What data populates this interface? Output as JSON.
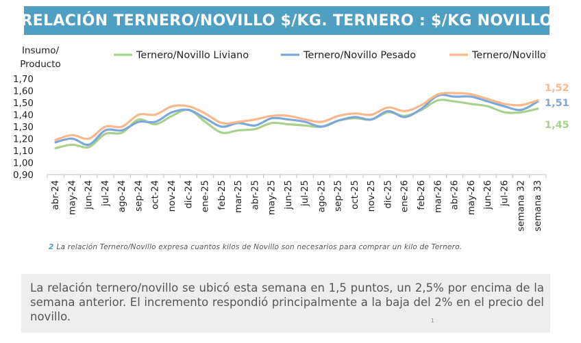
{
  "title": "RELACIÓN TERNERO/NOVILLO $/KG. TERNERO : $/KG NOVILLO",
  "footnote": {
    "number": "2",
    "text": "La relación Ternero/Novillo expresa cuantos kilos de Novillo son necesarios para comprar un kilo de Ternero."
  },
  "summary": "La relación ternero/novillo se ubicó esta semana en 1,5 puntos, un 2,5% por encima de la semana anterior. El incremento respondió principalmente a la baja del 2% en el precio del novillo.",
  "page_number": "1",
  "colors": {
    "title_bg": "#4f9fc2",
    "liviano": "#a9d18e",
    "pesado": "#7da7d9",
    "ternero_novillo": "#f8b88b"
  },
  "chart_data": {
    "type": "line",
    "ylabel_lines": [
      "Insumo/",
      "Producto"
    ],
    "ylim": [
      0.9,
      1.7
    ],
    "yticks": [
      "0,90",
      "1,00",
      "1,10",
      "1,20",
      "1,30",
      "1,40",
      "1,50",
      "1,60",
      "1,70"
    ],
    "grid": false,
    "legend_position": "top",
    "categories": [
      "abr-24",
      "may-24",
      "jun-24",
      "jul-24",
      "ago-24",
      "sep-24",
      "oct-24",
      "nov-24",
      "dic-24",
      "ene-25",
      "feb-25",
      "mar-25",
      "abr-25",
      "may-25",
      "jun-25",
      "jul-25",
      "ago-25",
      "sep-25",
      "oct-25",
      "nov-25",
      "dic-25",
      "ene-26",
      "feb-26",
      "mar-26",
      "abr-26",
      "may-26",
      "jun-26",
      "jul-26",
      "semana 32",
      "semana 33"
    ],
    "series": [
      {
        "name": "Ternero/Novillo Liviano",
        "color": "#a9d18e",
        "values": [
          1.12,
          1.15,
          1.13,
          1.24,
          1.25,
          1.36,
          1.32,
          1.39,
          1.44,
          1.34,
          1.25,
          1.27,
          1.28,
          1.33,
          1.32,
          1.31,
          1.3,
          1.35,
          1.37,
          1.36,
          1.42,
          1.39,
          1.44,
          1.52,
          1.51,
          1.49,
          1.47,
          1.42,
          1.42,
          1.45
        ]
      },
      {
        "name": "Ternero/Novillo Pesado",
        "color": "#7da7d9",
        "values": [
          1.17,
          1.2,
          1.15,
          1.27,
          1.27,
          1.34,
          1.34,
          1.42,
          1.44,
          1.37,
          1.3,
          1.33,
          1.31,
          1.37,
          1.36,
          1.34,
          1.3,
          1.35,
          1.38,
          1.36,
          1.43,
          1.38,
          1.45,
          1.56,
          1.55,
          1.55,
          1.51,
          1.47,
          1.44,
          1.51
        ]
      },
      {
        "name": "Ternero/Novillo",
        "color": "#f8b88b",
        "values": [
          1.19,
          1.23,
          1.2,
          1.3,
          1.3,
          1.4,
          1.4,
          1.47,
          1.47,
          1.41,
          1.33,
          1.34,
          1.36,
          1.39,
          1.39,
          1.36,
          1.34,
          1.39,
          1.41,
          1.4,
          1.46,
          1.43,
          1.48,
          1.57,
          1.58,
          1.57,
          1.53,
          1.49,
          1.48,
          1.52
        ]
      }
    ],
    "end_labels": [
      {
        "text": "1,52",
        "color": "#f8b88b"
      },
      {
        "text": "1,51",
        "color": "#7da7d9"
      },
      {
        "text": "1,45",
        "color": "#a9d18e"
      }
    ]
  }
}
